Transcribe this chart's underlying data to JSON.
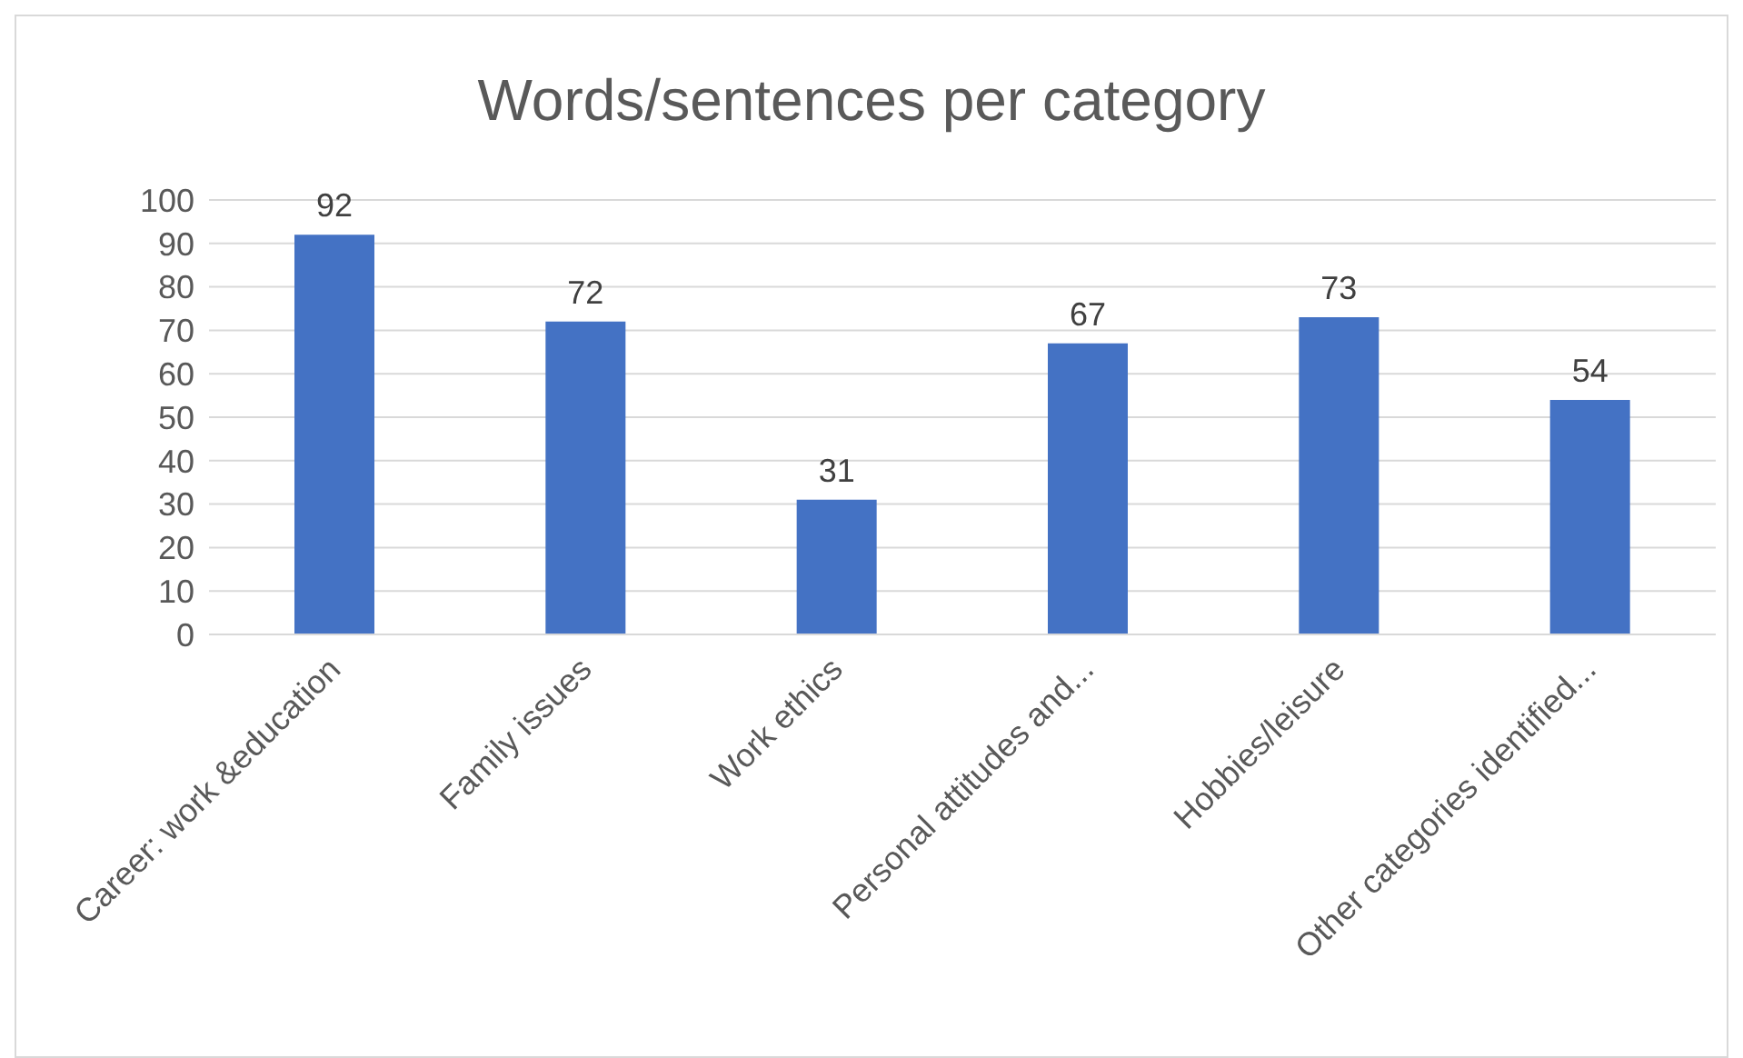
{
  "chart_data": {
    "type": "bar",
    "title": "Words/sentences per category",
    "categories": [
      "Career: work &education",
      "Family issues",
      "Work ethics",
      "Personal attitudes and...",
      "Hobbies/leisure",
      "Other categories identified..."
    ],
    "values": [
      92,
      72,
      31,
      67,
      73,
      54
    ],
    "color": "#4472c4",
    "ylim": [
      0,
      100
    ],
    "yticks": [
      0,
      10,
      20,
      30,
      40,
      50,
      60,
      70,
      80,
      90,
      100
    ],
    "grid": "y",
    "data_labels": true
  }
}
